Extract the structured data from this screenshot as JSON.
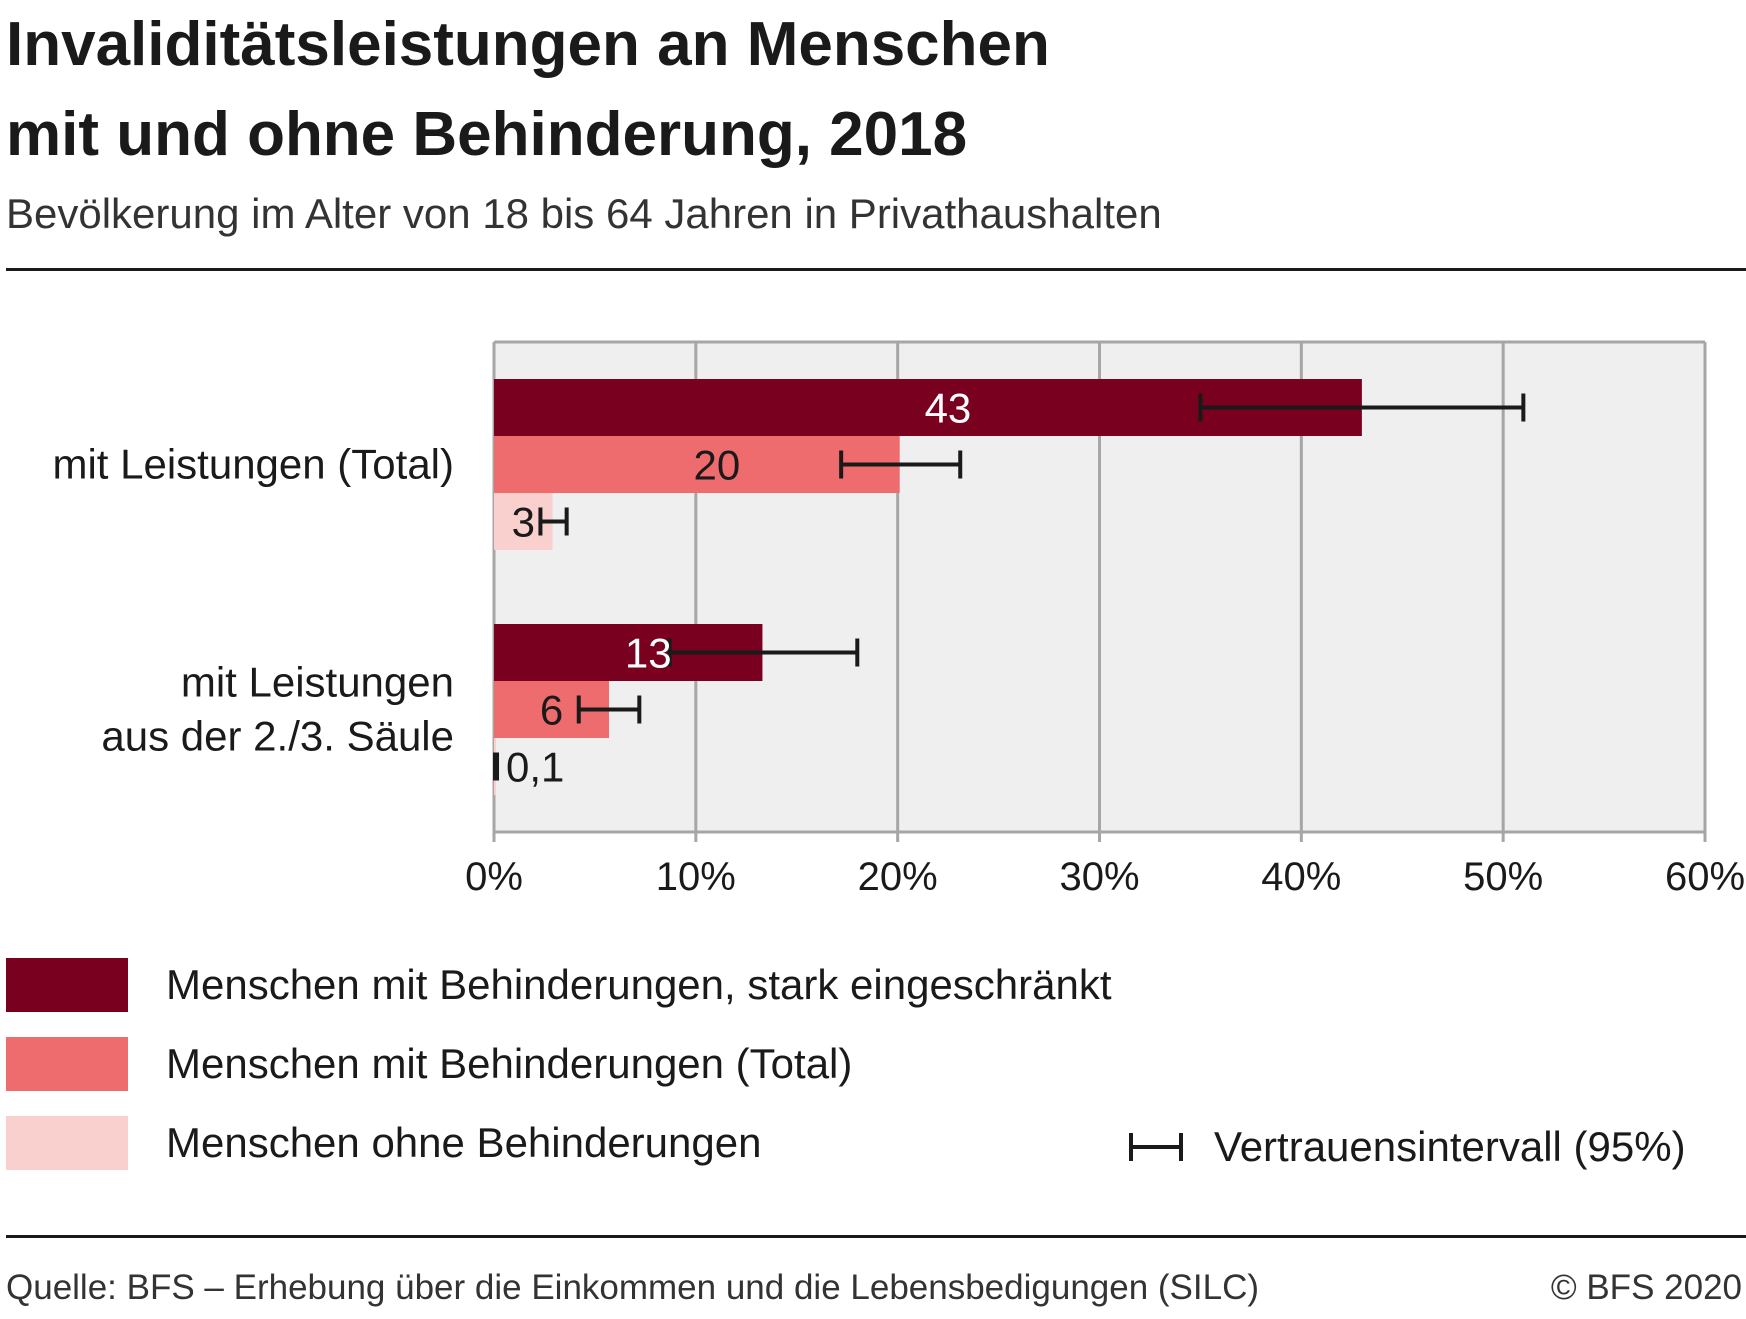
{
  "header": {
    "title_line1": "Invaliditätsleistungen an Menschen",
    "title_line2": "mit und ohne Behinderung, 2018",
    "subtitle": "Bevölkerung im Alter von 18 bis 64 Jahren in Privathaushalten"
  },
  "chart_data": {
    "type": "bar",
    "orientation": "horizontal",
    "categories": [
      [
        "mit Leistungen (Total)"
      ],
      [
        "mit Leistungen",
        "aus der 2./3. Säule"
      ]
    ],
    "series": [
      {
        "name": "Menschen mit Behinderungen, stark eingeschränkt",
        "color": "#7a0020",
        "values": [
          43,
          13.3
        ],
        "labels": [
          "43",
          "13"
        ],
        "ci": [
          [
            35,
            51
          ],
          [
            8.7,
            18
          ]
        ]
      },
      {
        "name": "Menschen mit Behinderungen (Total)",
        "color": "#ee6b6e",
        "values": [
          20.1,
          5.7
        ],
        "labels": [
          "20",
          "6"
        ],
        "ci": [
          [
            17.2,
            23.1
          ],
          [
            4.2,
            7.2
          ]
        ]
      },
      {
        "name": "Menschen ohne Behinderungen",
        "color": "#f9d0cd",
        "values": [
          2.9,
          0.1
        ],
        "labels": [
          "3",
          "0,1"
        ],
        "ci": [
          [
            2.3,
            3.6
          ],
          [
            0.05,
            0.15
          ]
        ]
      }
    ],
    "xlim": [
      0,
      60
    ],
    "xticks": [
      0,
      10,
      20,
      30,
      40,
      50,
      60
    ],
    "xtick_labels": [
      "0%",
      "10%",
      "20%",
      "30%",
      "40%",
      "50%",
      "60%"
    ],
    "grid": true,
    "legend_position": "bottom",
    "ci_legend_label": "Vertrauensintervall (95%)"
  },
  "footer": {
    "source": "Quelle: BFS – Erhebung über die Einkommen und die Lebensbedigungen (SILC)",
    "copyright": "© BFS 2020"
  }
}
